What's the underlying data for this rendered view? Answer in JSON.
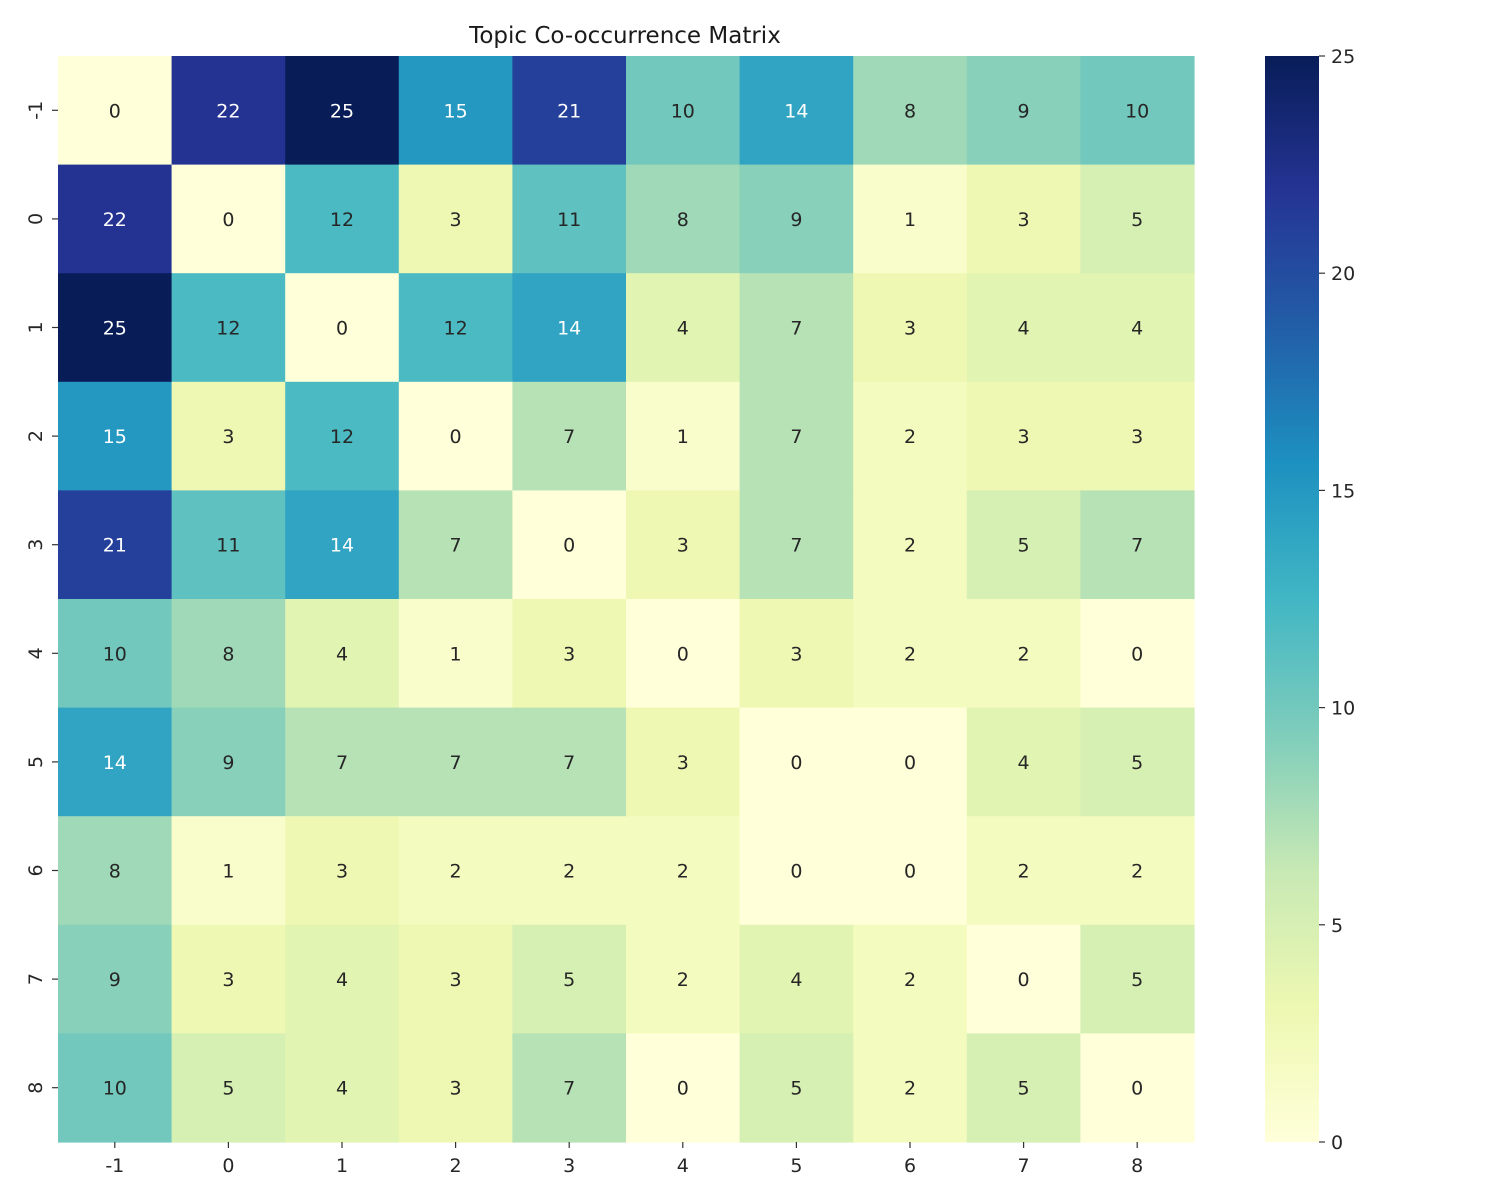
{
  "chart_data": {
    "type": "heatmap",
    "title": "Topic Co-occurrence Matrix",
    "xlabel": "",
    "ylabel": "",
    "x_categories": [
      "-1",
      "0",
      "1",
      "2",
      "3",
      "4",
      "5",
      "6",
      "7",
      "8"
    ],
    "y_categories": [
      "-1",
      "0",
      "1",
      "2",
      "3",
      "4",
      "5",
      "6",
      "7",
      "8"
    ],
    "values": [
      [
        0,
        22,
        25,
        15,
        21,
        10,
        14,
        8,
        9,
        10
      ],
      [
        22,
        0,
        12,
        3,
        11,
        8,
        9,
        1,
        3,
        5
      ],
      [
        25,
        12,
        0,
        12,
        14,
        4,
        7,
        3,
        4,
        4
      ],
      [
        15,
        3,
        12,
        0,
        7,
        1,
        7,
        2,
        3,
        3
      ],
      [
        21,
        11,
        14,
        7,
        0,
        3,
        7,
        2,
        5,
        7
      ],
      [
        10,
        8,
        4,
        1,
        3,
        0,
        3,
        2,
        2,
        0
      ],
      [
        14,
        9,
        7,
        7,
        7,
        3,
        0,
        0,
        4,
        5
      ],
      [
        8,
        1,
        3,
        2,
        2,
        2,
        0,
        0,
        2,
        2
      ],
      [
        9,
        3,
        4,
        3,
        5,
        2,
        4,
        2,
        0,
        5
      ],
      [
        10,
        5,
        4,
        3,
        7,
        0,
        5,
        2,
        5,
        0
      ]
    ],
    "color_range": [
      0,
      25
    ],
    "colorbar_ticks": [
      0,
      5,
      10,
      15,
      20,
      25
    ],
    "colormap": "YlGnBu",
    "colormap_stops": [
      "#ffffd9",
      "#edf8b1",
      "#c7e9b4",
      "#7fcdbb",
      "#41b6c4",
      "#1d91c0",
      "#225ea8",
      "#253494",
      "#081d58"
    ],
    "annotations": true,
    "grid": false,
    "legend": "none",
    "colorbar": "right"
  }
}
